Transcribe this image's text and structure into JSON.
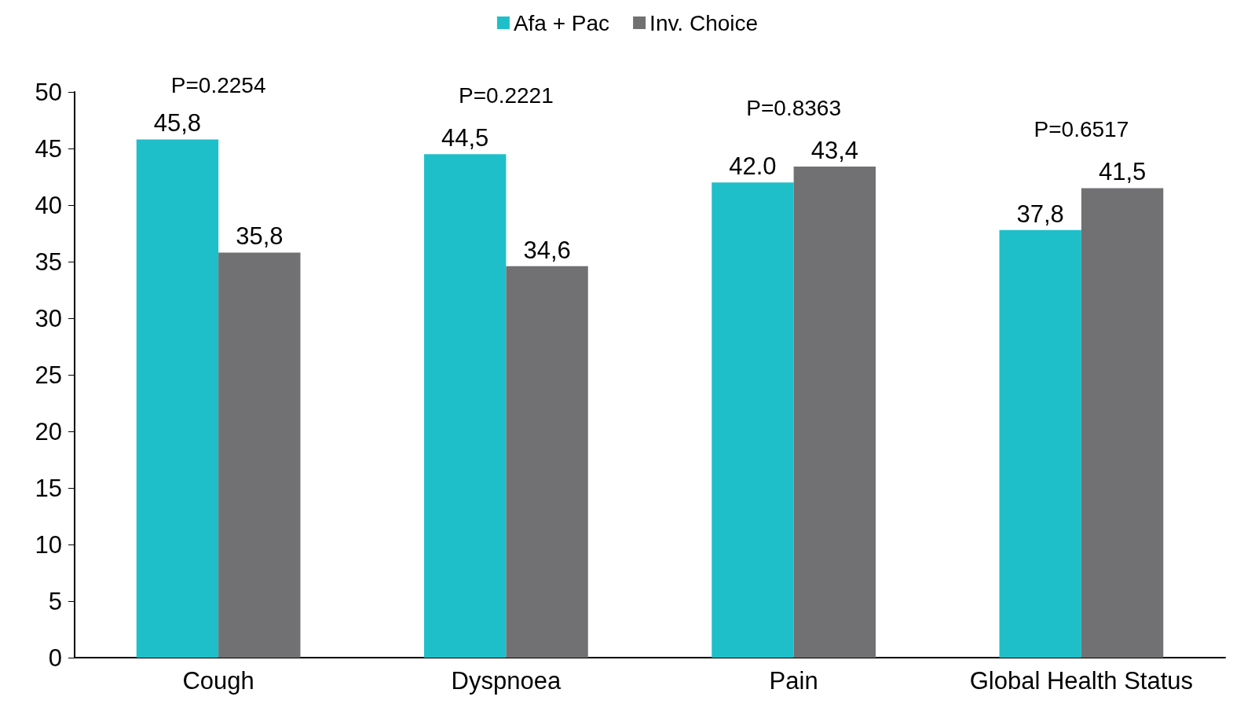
{
  "chart_data": {
    "type": "bar",
    "categories": [
      "Cough",
      "Dyspnoea",
      "Pain",
      "Global Health Status"
    ],
    "series": [
      {
        "name": "Afa + Pac",
        "color": "#1fbfc9",
        "values": [
          45.8,
          44.5,
          42.0,
          37.8
        ],
        "value_labels": [
          "45,8",
          "44,5",
          "42.0",
          "37,8"
        ]
      },
      {
        "name": "Inv. Choice",
        "color": "#717073",
        "values": [
          35.8,
          34.6,
          43.4,
          41.5
        ],
        "value_labels": [
          "35,8",
          "34,6",
          "43,4",
          "41,5"
        ]
      }
    ],
    "ylim": [
      0,
      50
    ],
    "yticks": [
      0,
      5,
      10,
      15,
      20,
      25,
      30,
      35,
      40,
      45,
      50
    ],
    "grid": false,
    "legend": "top",
    "annotations": [
      "P=0.2254",
      "P=0.2221",
      "P=0.8363",
      "P=0.6517"
    ]
  }
}
